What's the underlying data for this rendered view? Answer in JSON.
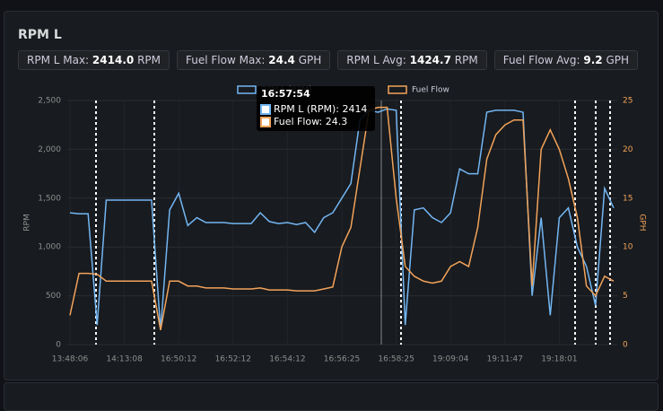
{
  "panel": {
    "title": "RPM L",
    "stats": [
      {
        "label": "RPM L Max:",
        "value": "2414.0",
        "unit": "RPM"
      },
      {
        "label": "Fuel Flow Max:",
        "value": "24.4",
        "unit": "GPH"
      },
      {
        "label": "RPM L Avg:",
        "value": "1424.7",
        "unit": "RPM"
      },
      {
        "label": "Fuel Flow Avg:",
        "value": "9.2",
        "unit": "GPH"
      }
    ]
  },
  "tooltip": {
    "time": "16:57:54",
    "rows": [
      "RPM L (RPM): 2414",
      "Fuel Flow: 24.3"
    ]
  },
  "chart_data": {
    "type": "line",
    "categories": [
      "13:48:06",
      null,
      null,
      null,
      null,
      null,
      "14:13:08",
      null,
      null,
      null,
      null,
      null,
      "16:50:12",
      null,
      null,
      null,
      null,
      null,
      "16:52:12",
      null,
      null,
      null,
      null,
      null,
      "16:54:12",
      null,
      null,
      null,
      null,
      null,
      "16:56:25",
      null,
      null,
      null,
      null,
      null,
      "16:58:25",
      null,
      null,
      null,
      null,
      null,
      "19:09:04",
      null,
      null,
      null,
      null,
      null,
      "19:11:47",
      null,
      null,
      null,
      null,
      null,
      "19:18:01",
      null,
      null,
      null,
      null,
      null,
      null
    ],
    "series": [
      {
        "name": "RPM L (RPM)",
        "color": "#73b6f3",
        "values": [
          1350,
          1340,
          1340,
          200,
          1480,
          1480,
          1480,
          1480,
          1480,
          1480,
          150,
          1380,
          1550,
          1220,
          1300,
          1250,
          1250,
          1250,
          1240,
          1240,
          1240,
          1350,
          1260,
          1240,
          1250,
          1230,
          1250,
          1150,
          1300,
          1350,
          1500,
          1650,
          2300,
          2400,
          2380,
          2414,
          2400,
          200,
          1380,
          1400,
          1300,
          1250,
          1350,
          1800,
          1750,
          1750,
          2380,
          2400,
          2400,
          2400,
          2380,
          500,
          1300,
          300,
          1300,
          1400,
          1000,
          800,
          400,
          1600,
          1400
        ]
      },
      {
        "name": "Fuel Flow",
        "color": "#f2a35a",
        "axis": "y2",
        "values": [
          3,
          7.3,
          7.3,
          7.2,
          6.5,
          6.5,
          6.5,
          6.5,
          6.5,
          6.5,
          1.5,
          6.5,
          6.5,
          6,
          6,
          5.8,
          5.8,
          5.8,
          5.7,
          5.7,
          5.7,
          5.8,
          5.6,
          5.6,
          5.6,
          5.5,
          5.5,
          5.5,
          5.7,
          5.9,
          10,
          12,
          18,
          24,
          24.3,
          24.3,
          15,
          8,
          7,
          6.5,
          6.3,
          6.5,
          8,
          8.5,
          8,
          12,
          19,
          21.5,
          22.5,
          23,
          23,
          6,
          20,
          22,
          20,
          17,
          13,
          6,
          5,
          7,
          6.5
        ]
      }
    ],
    "ylabel": "RPM",
    "y2label": "GPH",
    "ylim": [
      0,
      2500
    ],
    "yticks": [
      0,
      500,
      {
        "value": 1000,
        "label": "1,000"
      },
      {
        "value": 1500,
        "label": "1,500"
      },
      {
        "value": 2000,
        "label": "2,000"
      },
      {
        "value": 2500,
        "label": "2,500"
      }
    ],
    "y2lim": [
      0,
      25
    ],
    "y2ticks": [
      0,
      5,
      10,
      15,
      20,
      25
    ],
    "grid": true
  }
}
